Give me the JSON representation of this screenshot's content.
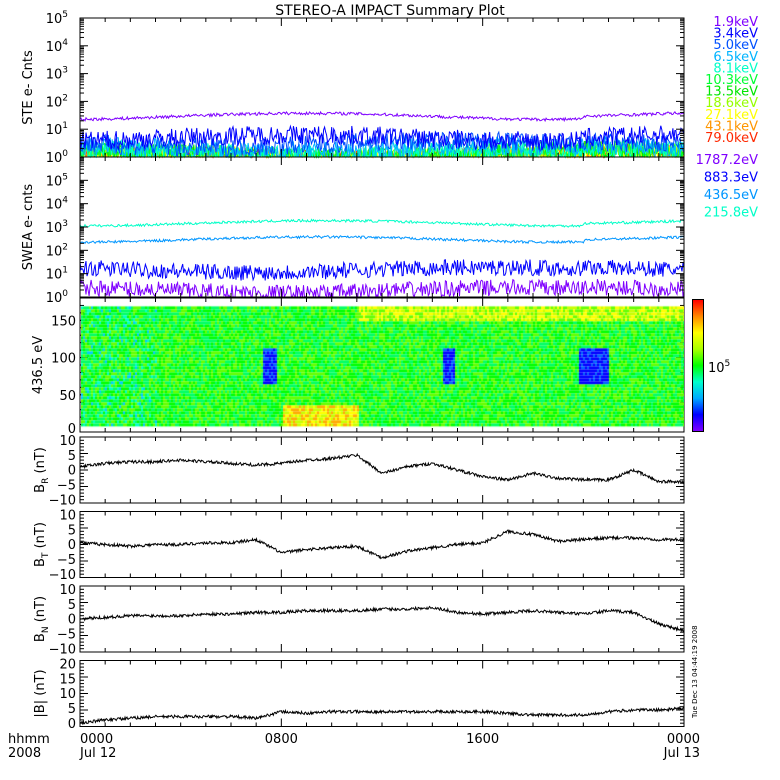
{
  "chart_data": {
    "type": "line",
    "title": "STEREO-A IMPACT Summary Plot",
    "timestamp": "Tue Dec 13 04:44:19 2008",
    "x_axis": {
      "corner_label": [
        "hhmm",
        "2008"
      ],
      "range_hours": [
        0,
        24
      ],
      "ticks": [
        {
          "hour": 0,
          "label": "0000",
          "sublabel": "Jul 12"
        },
        {
          "hour": 8,
          "label": "0800",
          "sublabel": ""
        },
        {
          "hour": 16,
          "label": "1600",
          "sublabel": ""
        },
        {
          "hour": 24,
          "label": "0000",
          "sublabel": "Jul 13"
        }
      ]
    },
    "panels": [
      {
        "id": "ste",
        "ylabel": "STE e- Cnts",
        "scale": "log",
        "ylim": [
          1,
          100000
        ],
        "tick_labels": [
          "10",
          "10",
          "10",
          "10",
          "10",
          "10"
        ],
        "tick_exponents": [
          "0",
          "1",
          "2",
          "3",
          "4",
          "5"
        ],
        "series": [
          {
            "name": "1.9keV",
            "color": "#7f00ff",
            "level": 30
          },
          {
            "name": "3.4keV",
            "color": "#0000ff",
            "level": 5
          },
          {
            "name": "5.0keV",
            "color": "#0050ff",
            "level": 3
          },
          {
            "name": "6.5keV",
            "color": "#00b4ff",
            "level": 2
          },
          {
            "name": "8.1keV",
            "color": "#00ffc8",
            "level": 1.5
          },
          {
            "name": "10.3keV",
            "color": "#00ff32",
            "level": 1.3
          },
          {
            "name": "13.5keV",
            "color": "#00e600",
            "level": 1.2
          },
          {
            "name": "18.6keV",
            "color": "#96ff00",
            "level": 1.1
          },
          {
            "name": "27.1keV",
            "color": "#ffff00",
            "level": 1.05
          },
          {
            "name": "43.1keV",
            "color": "#ff9600",
            "level": 1.02
          },
          {
            "name": "79.0keV",
            "color": "#ff2800",
            "level": 1.0
          }
        ]
      },
      {
        "id": "swea",
        "ylabel": "SWEA e- cnts",
        "scale": "log",
        "ylim": [
          1,
          1000000
        ],
        "tick_labels": [
          "10",
          "10",
          "10",
          "10",
          "10",
          "10"
        ],
        "tick_exponents": [
          "0",
          "1",
          "2",
          "3",
          "4",
          "5"
        ],
        "series": [
          {
            "name": "1787.2eV",
            "color": "#7f00ff",
            "level": 2
          },
          {
            "name": "883.3eV",
            "color": "#0000ff",
            "level": 15
          },
          {
            "name": "436.5eV",
            "color": "#0096ff",
            "level": 300
          },
          {
            "name": "215.8eV",
            "color": "#00ffc8",
            "level": 1500
          }
        ]
      },
      {
        "id": "pad",
        "ylabel": "436.5 eV",
        "scale": "linear",
        "type": "heatmap",
        "ylim": [
          0,
          180
        ],
        "ticks": [
          0,
          50,
          100,
          150
        ],
        "tick_labels": [
          "0",
          "50",
          "100",
          "150"
        ],
        "colorbar_label": "10",
        "colorbar_exponent": "5"
      },
      {
        "id": "br",
        "ylabel": "B",
        "ylabel_sub": "R",
        "ylabel_unit": "(nT)",
        "scale": "linear",
        "ylim": [
          -10,
          10
        ],
        "ticks": [
          -10,
          -5,
          0,
          5,
          10
        ],
        "tick_labels": [
          "−10",
          "−5",
          "0",
          "5",
          "10"
        ],
        "hourly": [
          1,
          2,
          2.5,
          2.5,
          3,
          2.5,
          2,
          1.5,
          2,
          3,
          3.5,
          4.5,
          -1,
          1,
          2,
          0,
          -2,
          -3,
          -1,
          -2.5,
          -3,
          -3,
          0,
          -3.5,
          -3.5
        ]
      },
      {
        "id": "bt",
        "ylabel": "B",
        "ylabel_sub": "T",
        "ylabel_unit": "(nT)",
        "scale": "linear",
        "ylim": [
          -10,
          10
        ],
        "ticks": [
          -10,
          -5,
          0,
          5,
          10
        ],
        "tick_labels": [
          "−10",
          "−5",
          "0",
          "5",
          "10"
        ],
        "hourly": [
          0.5,
          0,
          -0.5,
          0,
          0,
          0.5,
          0.5,
          1.5,
          -2.5,
          -1.5,
          -1,
          -0.5,
          -4,
          -2,
          -1,
          0,
          0.5,
          4,
          3,
          1,
          1.5,
          2,
          2,
          1.5,
          1.5
        ]
      },
      {
        "id": "bn",
        "ylabel": "B",
        "ylabel_sub": "N",
        "ylabel_unit": "(nT)",
        "scale": "linear",
        "ylim": [
          -10,
          10
        ],
        "ticks": [
          -10,
          -5,
          0,
          5,
          10
        ],
        "tick_labels": [
          "−10",
          "−5",
          "0",
          "5",
          "10"
        ],
        "hourly": [
          0,
          0.5,
          1,
          1,
          1,
          1.5,
          1.5,
          2,
          2,
          2.5,
          2.5,
          2.5,
          3,
          3,
          3.5,
          2,
          1.5,
          2,
          2.5,
          2,
          1.5,
          2.5,
          2,
          -1.5,
          -3.5
        ]
      },
      {
        "id": "bmag",
        "ylabel": "|B|",
        "ylabel_sub": "",
        "ylabel_unit": "(nT)",
        "scale": "linear",
        "ylim": [
          0,
          20
        ],
        "ticks": [
          0,
          5,
          10,
          15,
          20
        ],
        "tick_labels": [
          "0",
          "5",
          "10",
          "15",
          "20"
        ],
        "hourly": [
          1,
          2,
          2.5,
          3,
          3,
          3,
          3,
          2.5,
          4.5,
          4,
          4.5,
          4.5,
          4.5,
          4.5,
          4.5,
          4.5,
          4.5,
          4,
          3.5,
          3.5,
          3.5,
          4.5,
          5,
          5,
          5.5
        ]
      }
    ]
  }
}
